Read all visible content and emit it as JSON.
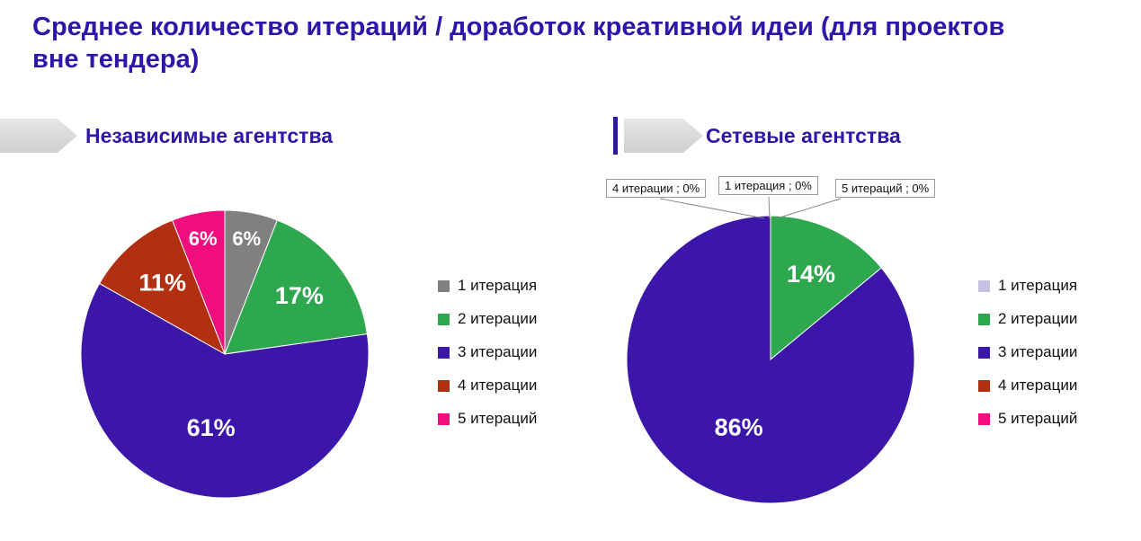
{
  "page_title": "Среднее количество итераций / доработок креативной идеи (для проектов вне тендера)",
  "theme": {
    "accent_color": "#2E16A8",
    "banner_color": "#D9D9D9"
  },
  "sections": [
    {
      "heading": "Независимые агентства"
    },
    {
      "heading": "Сетевые агентства"
    }
  ],
  "chart_data": [
    {
      "type": "pie",
      "title": "Независимые агентства",
      "categories": [
        "1 итерация",
        "2 итерации",
        "3 итерации",
        "4 итерации",
        "5 итераций"
      ],
      "values": [
        6,
        17,
        61,
        11,
        6
      ],
      "unit": "%",
      "data_labels": [
        "6%",
        "17%",
        "61%",
        "11%",
        "6%"
      ],
      "colors": [
        "#808080",
        "#2EA84F",
        "#3B16A8",
        "#B2300F",
        "#F20D7E"
      ],
      "start_angle_deg": 0,
      "direction": "clockwise",
      "legend_position": "right"
    },
    {
      "type": "pie",
      "title": "Сетевые агентства",
      "categories": [
        "1 итерация",
        "2 итерации",
        "3 итерации",
        "4 итерации",
        "5 итераций"
      ],
      "values": [
        0,
        14,
        86,
        0,
        0
      ],
      "unit": "%",
      "data_labels": [
        "",
        "14%",
        "86%",
        "",
        ""
      ],
      "colors": [
        "#C8C0E2",
        "#2EA84F",
        "#3B16A8",
        "#B2300F",
        "#F20D7E"
      ],
      "start_angle_deg": 0,
      "direction": "clockwise",
      "legend_position": "right",
      "callouts": [
        {
          "label": "4 итерации ; 0%"
        },
        {
          "label": "1 итерация ; 0%"
        },
        {
          "label": "5 итераций ; 0%"
        }
      ]
    }
  ]
}
